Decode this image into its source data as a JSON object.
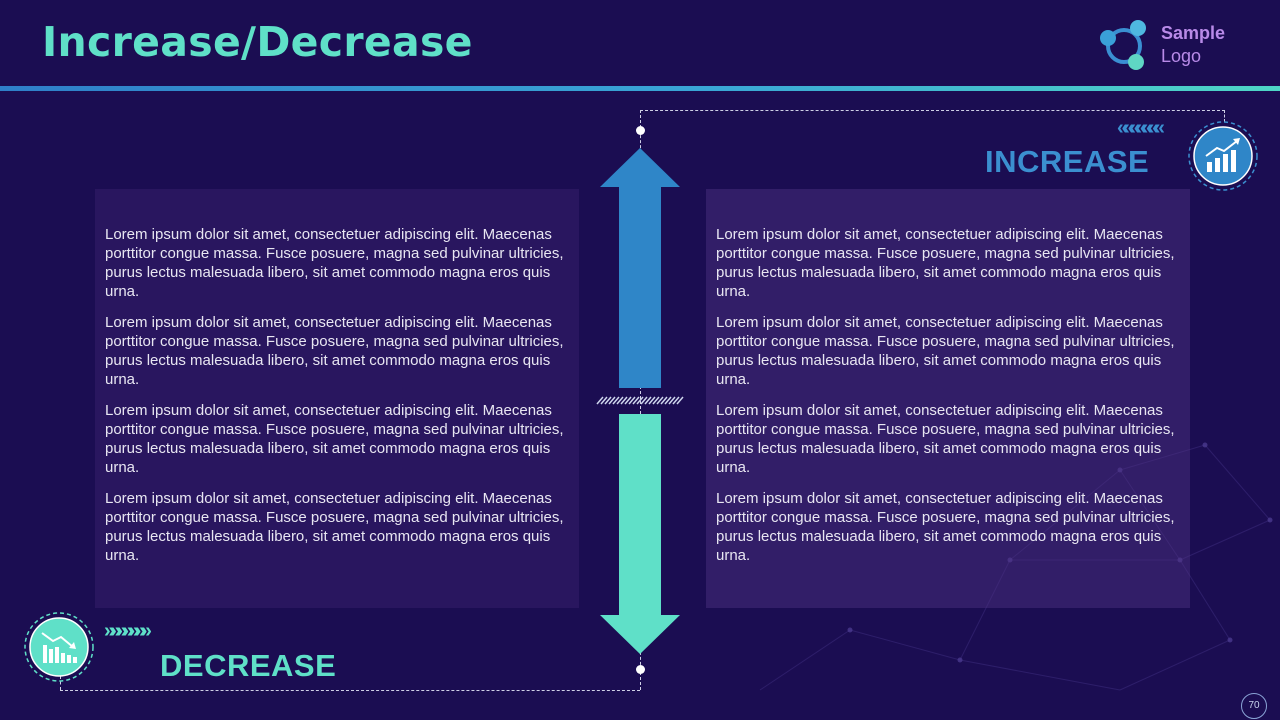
{
  "slide": {
    "title": "Increase/Decrease",
    "page_number": "70"
  },
  "logo": {
    "line1": "Sample",
    "line2": "Logo"
  },
  "increase": {
    "label": "INCREASE",
    "chevrons": "«««««««",
    "icon": "bar-chart-up-icon",
    "color": "#3b8fd0"
  },
  "decrease": {
    "label": "DECREASE",
    "chevrons": "»»»»»»»",
    "icon": "bar-chart-down-icon",
    "color": "#5fe0c8"
  },
  "left_panel": {
    "paragraphs": [
      "Lorem ipsum dolor sit amet, consectetuer adipiscing elit. Maecenas porttitor congue massa. Fusce posuere, magna sed pulvinar ultricies, purus lectus malesuada libero, sit amet commodo magna eros quis urna.",
      "Lorem ipsum dolor sit amet, consectetuer adipiscing elit. Maecenas porttitor congue massa. Fusce posuere, magna sed pulvinar ultricies, purus lectus malesuada libero, sit amet commodo magna eros quis urna.",
      "Lorem ipsum dolor sit amet, consectetuer adipiscing elit. Maecenas porttitor congue massa. Fusce posuere, magna sed pulvinar ultricies, purus lectus malesuada libero, sit amet commodo magna eros quis urna.",
      "Lorem ipsum dolor sit amet, consectetuer adipiscing elit. Maecenas porttitor congue massa. Fusce posuere, magna sed pulvinar ultricies, purus lectus malesuada libero, sit amet commodo magna eros quis urna."
    ]
  },
  "right_panel": {
    "paragraphs": [
      "Lorem ipsum dolor sit amet, consectetuer adipiscing elit. Maecenas porttitor congue massa. Fusce posuere, magna sed pulvinar ultricies, purus lectus malesuada libero, sit amet commodo magna eros quis urna.",
      "Lorem ipsum dolor sit amet, consectetuer adipiscing elit. Maecenas porttitor congue massa. Fusce posuere, magna sed pulvinar ultricies, purus lectus malesuada libero, sit amet commodo magna eros quis urna.",
      "Lorem ipsum dolor sit amet, consectetuer adipiscing elit. Maecenas porttitor congue massa. Fusce posuere, magna sed pulvinar ultricies, purus lectus malesuada libero, sit amet commodo magna eros quis urna.",
      "Lorem ipsum dolor sit amet, consectetuer adipiscing elit. Maecenas porttitor congue massa. Fusce posuere, magna sed pulvinar ultricies, purus lectus malesuada libero, sit amet commodo magna eros quis urna."
    ]
  },
  "colors": {
    "background": "#1b0d52",
    "title": "#5fe0c8",
    "up_arrow": "#2f86c8",
    "down_arrow": "#5fe0c8"
  }
}
